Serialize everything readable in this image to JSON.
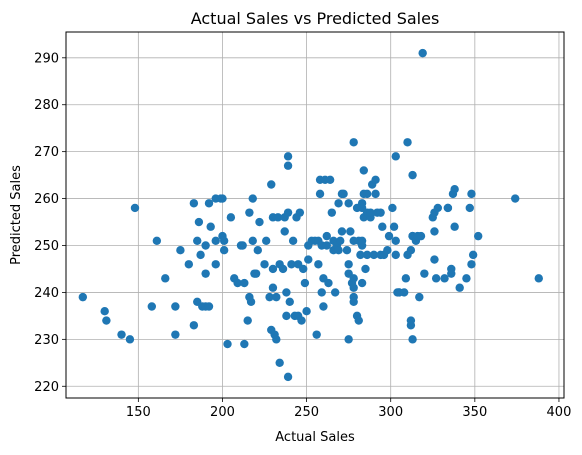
{
  "chart_data": {
    "type": "scatter",
    "title": "Actual Sales vs Predicted Sales",
    "xlabel": "Actual Sales",
    "ylabel": "Predicted Sales",
    "xlim": [
      107,
      403
    ],
    "ylim": [
      217.5,
      295.5
    ],
    "xticks": [
      150,
      200,
      250,
      300,
      350,
      400
    ],
    "yticks": [
      220,
      230,
      240,
      250,
      260,
      270,
      280,
      290
    ],
    "grid": true,
    "marker_color": "#1f77b4",
    "points": [
      [
        117,
        239
      ],
      [
        130,
        236
      ],
      [
        131,
        234
      ],
      [
        140,
        231
      ],
      [
        145,
        230
      ],
      [
        148,
        258
      ],
      [
        158,
        237
      ],
      [
        161,
        251
      ],
      [
        166,
        243
      ],
      [
        172,
        237
      ],
      [
        172,
        231
      ],
      [
        175,
        249
      ],
      [
        180,
        246
      ],
      [
        183,
        259
      ],
      [
        183,
        233
      ],
      [
        185,
        251
      ],
      [
        186,
        255
      ],
      [
        185,
        238
      ],
      [
        187,
        248
      ],
      [
        188,
        237
      ],
      [
        190,
        244
      ],
      [
        190,
        250
      ],
      [
        190,
        237
      ],
      [
        192,
        259
      ],
      [
        192,
        237
      ],
      [
        193,
        254
      ],
      [
        196,
        246
      ],
      [
        196,
        251
      ],
      [
        196,
        260
      ],
      [
        199,
        260
      ],
      [
        200,
        260
      ],
      [
        200,
        252
      ],
      [
        201,
        251
      ],
      [
        201,
        249
      ],
      [
        203,
        229
      ],
      [
        205,
        256
      ],
      [
        207,
        243
      ],
      [
        209,
        242
      ],
      [
        211,
        250
      ],
      [
        212,
        250
      ],
      [
        213,
        229
      ],
      [
        213,
        242
      ],
      [
        215,
        234
      ],
      [
        216,
        239
      ],
      [
        217,
        238
      ],
      [
        216,
        257
      ],
      [
        218,
        260
      ],
      [
        218,
        251
      ],
      [
        219,
        244
      ],
      [
        220,
        244
      ],
      [
        221,
        249
      ],
      [
        222,
        255
      ],
      [
        225,
        246
      ],
      [
        226,
        251
      ],
      [
        228,
        239
      ],
      [
        229,
        263
      ],
      [
        229,
        232
      ],
      [
        230,
        256
      ],
      [
        230,
        245
      ],
      [
        230,
        241
      ],
      [
        231,
        231
      ],
      [
        232,
        239
      ],
      [
        232,
        230
      ],
      [
        233,
        256
      ],
      [
        234,
        246
      ],
      [
        234,
        225
      ],
      [
        236,
        245
      ],
      [
        237,
        256
      ],
      [
        237,
        253
      ],
      [
        238,
        240
      ],
      [
        238,
        235
      ],
      [
        239,
        222
      ],
      [
        239,
        257
      ],
      [
        239,
        269
      ],
      [
        239,
        267
      ],
      [
        240,
        238
      ],
      [
        241,
        246
      ],
      [
        242,
        251
      ],
      [
        243,
        235
      ],
      [
        244,
        256
      ],
      [
        245,
        246
      ],
      [
        245,
        235
      ],
      [
        246,
        257
      ],
      [
        247,
        234
      ],
      [
        248,
        245
      ],
      [
        249,
        242
      ],
      [
        250,
        236
      ],
      [
        251,
        247
      ],
      [
        251,
        250
      ],
      [
        253,
        251
      ],
      [
        255,
        251
      ],
      [
        256,
        231
      ],
      [
        257,
        246
      ],
      [
        257,
        251
      ],
      [
        258,
        261
      ],
      [
        258,
        264
      ],
      [
        259,
        240
      ],
      [
        259,
        250
      ],
      [
        260,
        243
      ],
      [
        260,
        237
      ],
      [
        261,
        264
      ],
      [
        262,
        252
      ],
      [
        262,
        250
      ],
      [
        263,
        242
      ],
      [
        264,
        264
      ],
      [
        265,
        257
      ],
      [
        266,
        249
      ],
      [
        266,
        251
      ],
      [
        267,
        240
      ],
      [
        268,
        250
      ],
      [
        269,
        259
      ],
      [
        269,
        249
      ],
      [
        270,
        251
      ],
      [
        271,
        253
      ],
      [
        271,
        261
      ],
      [
        272,
        261
      ],
      [
        274,
        249
      ],
      [
        275,
        246
      ],
      [
        275,
        259
      ],
      [
        275,
        244
      ],
      [
        275,
        230
      ],
      [
        276,
        253
      ],
      [
        277,
        242
      ],
      [
        278,
        243
      ],
      [
        278,
        239
      ],
      [
        278,
        251
      ],
      [
        278,
        241
      ],
      [
        278,
        238
      ],
      [
        278,
        272
      ],
      [
        280,
        258
      ],
      [
        280,
        235
      ],
      [
        281,
        251
      ],
      [
        281,
        234
      ],
      [
        282,
        248
      ],
      [
        283,
        250
      ],
      [
        283,
        251
      ],
      [
        283,
        258
      ],
      [
        283,
        259
      ],
      [
        283,
        242
      ],
      [
        284,
        256
      ],
      [
        284,
        261
      ],
      [
        284,
        266
      ],
      [
        285,
        245
      ],
      [
        286,
        261
      ],
      [
        286,
        248
      ],
      [
        286,
        257
      ],
      [
        288,
        256
      ],
      [
        288,
        257
      ],
      [
        289,
        263
      ],
      [
        290,
        248
      ],
      [
        291,
        264
      ],
      [
        291,
        261
      ],
      [
        292,
        257
      ],
      [
        294,
        257
      ],
      [
        294,
        248
      ],
      [
        295,
        254
      ],
      [
        296,
        248
      ],
      [
        298,
        249
      ],
      [
        299,
        252
      ],
      [
        301,
        258
      ],
      [
        302,
        254
      ],
      [
        303,
        248
      ],
      [
        303,
        251
      ],
      [
        303,
        269
      ],
      [
        304,
        240
      ],
      [
        305,
        240
      ],
      [
        305,
        240
      ],
      [
        308,
        240
      ],
      [
        309,
        243
      ],
      [
        310,
        248
      ],
      [
        310,
        272
      ],
      [
        312,
        234
      ],
      [
        312,
        233
      ],
      [
        312,
        249
      ],
      [
        313,
        230
      ],
      [
        313,
        252
      ],
      [
        313,
        265
      ],
      [
        313,
        252
      ],
      [
        315,
        251
      ],
      [
        316,
        252
      ],
      [
        317,
        239
      ],
      [
        318,
        252
      ],
      [
        319,
        291
      ],
      [
        320,
        244
      ],
      [
        325,
        256
      ],
      [
        326,
        257
      ],
      [
        326,
        253
      ],
      [
        326,
        247
      ],
      [
        327,
        243
      ],
      [
        328,
        258
      ],
      [
        332,
        243
      ],
      [
        334,
        258
      ],
      [
        334,
        258
      ],
      [
        336,
        245
      ],
      [
        336,
        244
      ],
      [
        337,
        261
      ],
      [
        338,
        262
      ],
      [
        338,
        254
      ],
      [
        341,
        241
      ],
      [
        345,
        243
      ],
      [
        347,
        258
      ],
      [
        348,
        246
      ],
      [
        348,
        261
      ],
      [
        349,
        248
      ],
      [
        352,
        252
      ],
      [
        374,
        260
      ],
      [
        388,
        243
      ]
    ]
  }
}
